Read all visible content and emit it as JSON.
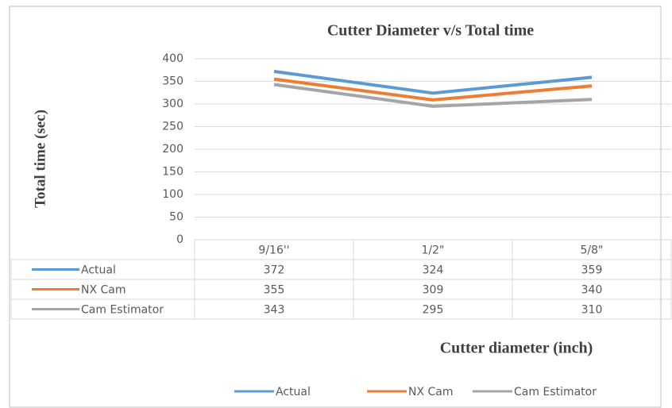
{
  "chart_data": {
    "type": "line",
    "title": "Cutter Diameter v/s Total time",
    "y_label": "Total time (sec)",
    "x_label": "Cutter diameter (inch)",
    "categories": [
      "9/16''",
      "1/2\"",
      "5/8\""
    ],
    "series": [
      {
        "name": "Actual",
        "color": "#5b9bd5",
        "values": [
          372,
          324,
          359
        ]
      },
      {
        "name": "NX Cam",
        "color": "#ed7d31",
        "values": [
          355,
          309,
          340
        ]
      },
      {
        "name": "Cam Estimator",
        "color": "#a5a5a5",
        "values": [
          343,
          295,
          310
        ]
      }
    ],
    "ylim": [
      0,
      400
    ],
    "yticks": [
      0,
      50,
      100,
      150,
      200,
      250,
      300,
      350,
      400
    ],
    "grid": true,
    "legend": "bottom",
    "data_table": true
  }
}
